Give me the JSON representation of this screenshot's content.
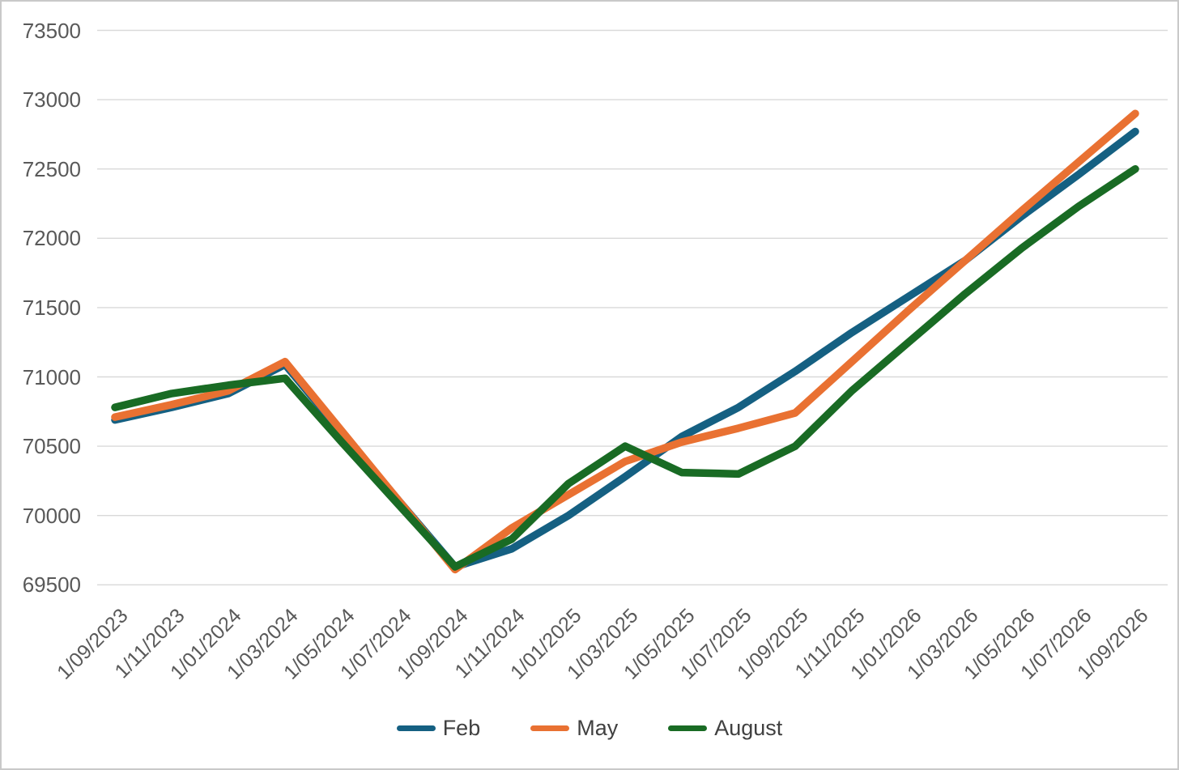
{
  "chart_data": {
    "type": "line",
    "title": "",
    "categories": [
      "1/09/2023",
      "1/11/2023",
      "1/01/2024",
      "1/03/2024",
      "1/05/2024",
      "1/07/2024",
      "1/09/2024",
      "1/11/2024",
      "1/01/2025",
      "1/03/2025",
      "1/05/2025",
      "1/07/2025",
      "1/09/2025",
      "1/11/2025",
      "1/01/2026",
      "1/03/2026",
      "1/05/2026",
      "1/07/2026",
      "1/09/2026"
    ],
    "series": [
      {
        "name": "Feb",
        "color": "#156082",
        "values": [
          70690,
          70780,
          70880,
          71090,
          70600,
          70110,
          69630,
          69760,
          70000,
          70280,
          70570,
          70780,
          71040,
          71320,
          71580,
          71840,
          72160,
          72460,
          72770
        ]
      },
      {
        "name": "May",
        "color": "#E97132",
        "values": [
          70710,
          70800,
          70900,
          71110,
          70610,
          70110,
          69610,
          69910,
          70150,
          70390,
          70530,
          70630,
          70740,
          71110,
          71480,
          71840,
          72200,
          72550,
          72900
        ]
      },
      {
        "name": "August",
        "color": "#196B24",
        "values": [
          70780,
          70880,
          70940,
          70990,
          70530,
          70080,
          69630,
          69830,
          70230,
          70500,
          70310,
          70300,
          70500,
          70900,
          71250,
          71600,
          71930,
          72230,
          72500
        ]
      }
    ],
    "ylim": [
      69500,
      73500
    ],
    "ytick_step": 500,
    "yticks": [
      73500,
      73000,
      72500,
      72000,
      71500,
      71000,
      70500,
      70000,
      69500
    ],
    "xlabel": "",
    "ylabel": "",
    "grid": "horizontal",
    "gridline_color": "#D9D9D9",
    "axis_text_color": "#595959",
    "legend_position": "bottom",
    "legend_text_color": "#404040",
    "background_color": "#FFFFFF",
    "border_color": "#C9C9C9",
    "line_width": 9.5
  }
}
